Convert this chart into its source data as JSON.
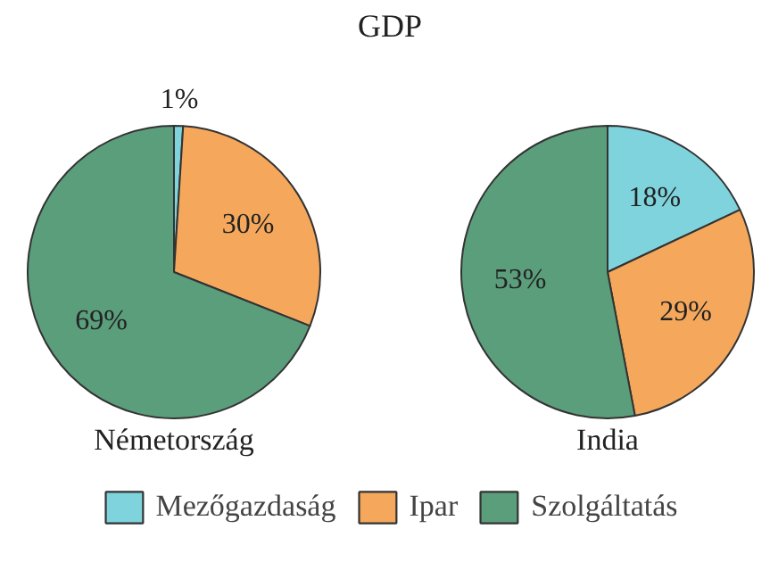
{
  "chart_data": {
    "type": "pie",
    "title": "GDP",
    "categories": [
      "Mezőgazdaság",
      "Ipar",
      "Szolgáltatás"
    ],
    "colors": [
      "#7fd3dc",
      "#f5a85c",
      "#5b9e7c"
    ],
    "legend": "bottom",
    "series": [
      {
        "name": "Németország",
        "values": [
          1,
          30,
          69
        ],
        "value_labels": [
          "1%",
          "30%",
          "69%"
        ]
      },
      {
        "name": "India",
        "values": [
          18,
          29,
          53
        ],
        "value_labels": [
          "18%",
          "29%",
          "53%"
        ]
      }
    ]
  }
}
